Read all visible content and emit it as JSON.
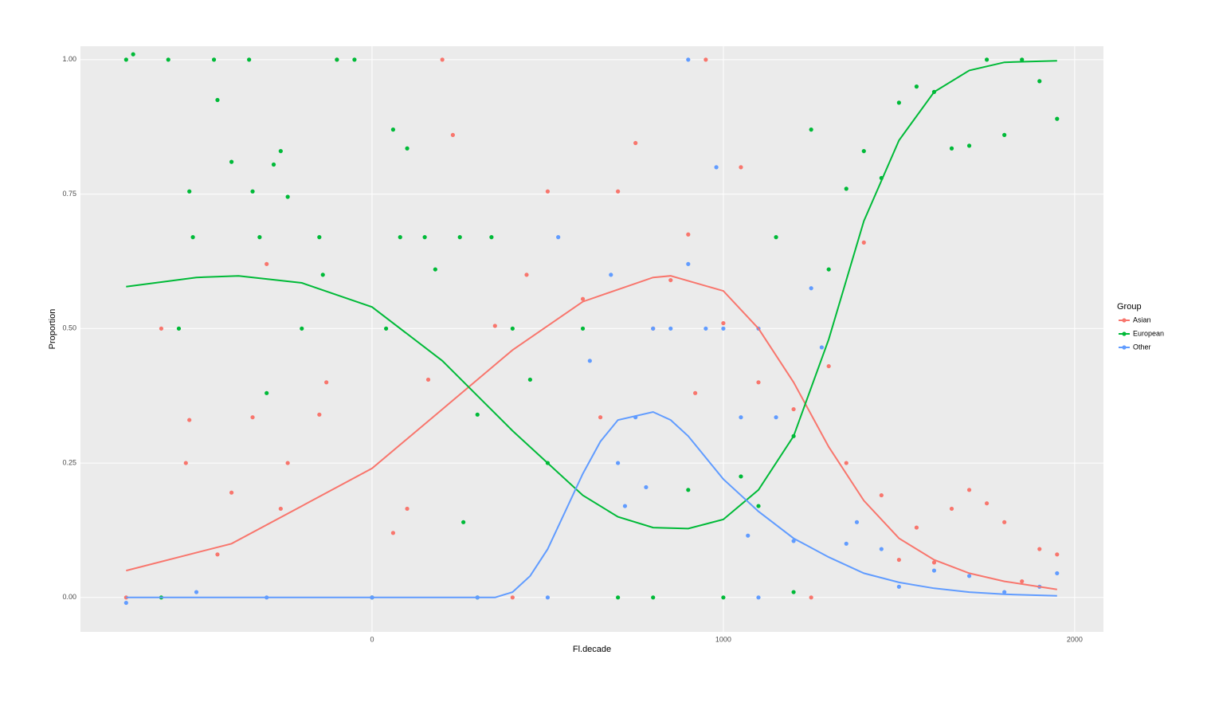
{
  "chart_data": {
    "type": "scatter",
    "x_label": "Fl.decade",
    "y_label": "Proportion",
    "xlim": [
      -830,
      2082
    ],
    "ylim": [
      -0.064,
      1.025
    ],
    "xticks": [
      0,
      1000,
      2000
    ],
    "yticks": [
      {
        "value": 0,
        "label": "0.00"
      },
      {
        "value": 0.25,
        "label": "0.25"
      },
      {
        "value": 0.5,
        "label": "0.50"
      },
      {
        "value": 0.75,
        "label": "0.75"
      },
      {
        "value": 1,
        "label": "1.00"
      }
    ],
    "grid": true,
    "legend_title": "Group",
    "legend_position": "right",
    "series": [
      {
        "name": "Asian",
        "color": "#F8766D",
        "x": [
          -600,
          -520,
          -530,
          -440,
          -400,
          -340,
          -300,
          -260,
          -240,
          -150,
          -130,
          -100,
          0,
          60,
          100,
          160,
          230,
          200,
          350,
          440,
          500,
          600,
          650,
          700,
          750,
          800,
          850,
          900,
          920,
          950,
          1000,
          1050,
          1100,
          1200,
          1300,
          1350,
          1400,
          1450,
          1500,
          1550,
          1600,
          1650,
          1700,
          1750,
          1800,
          1850,
          1900,
          1950,
          -700,
          400,
          1250
        ],
        "values": [
          0.5,
          0.33,
          0.25,
          0.08,
          0.195,
          0.335,
          0.62,
          0.165,
          0.25,
          0.34,
          0.4,
          1,
          0,
          0.12,
          0.165,
          0.405,
          0.86,
          1,
          0.505,
          0.6,
          0.755,
          0.555,
          0.335,
          0.755,
          0.845,
          0.5,
          0.59,
          0.675,
          0.38,
          1,
          0.51,
          0.8,
          0.4,
          0.35,
          0.43,
          0.25,
          0.66,
          0.19,
          0.07,
          0.13,
          0.065,
          0.165,
          0.2,
          0.175,
          0.14,
          0.03,
          0.09,
          0.08,
          0,
          0,
          0
        ],
        "smooth_x": [
          -700,
          -400,
          -200,
          0,
          200,
          400,
          600,
          800,
          850,
          1000,
          1100,
          1200,
          1300,
          1400,
          1500,
          1600,
          1700,
          1800,
          1950
        ],
        "smooth_values": [
          0.05,
          0.1,
          0.17,
          0.24,
          0.35,
          0.46,
          0.55,
          0.595,
          0.598,
          0.57,
          0.5,
          0.4,
          0.28,
          0.18,
          0.11,
          0.07,
          0.045,
          0.03,
          0.015
        ]
      },
      {
        "name": "European",
        "color": "#00BA38",
        "x": [
          -700,
          -680,
          -580,
          -550,
          -520,
          -510,
          -450,
          -440,
          -400,
          -350,
          -340,
          -320,
          -300,
          -280,
          -260,
          -240,
          -200,
          -150,
          -140,
          -100,
          -50,
          40,
          60,
          80,
          100,
          150,
          180,
          250,
          260,
          300,
          340,
          400,
          450,
          500,
          600,
          700,
          900,
          1050,
          1100,
          1150,
          1200,
          1250,
          1300,
          1350,
          1400,
          1450,
          1500,
          1550,
          1600,
          1650,
          1700,
          1750,
          1800,
          1850,
          1900,
          1950,
          1200,
          -600,
          0,
          300,
          800,
          1000
        ],
        "values": [
          1,
          1.01,
          1,
          0.5,
          0.755,
          0.67,
          1,
          0.925,
          0.81,
          1,
          0.755,
          0.67,
          0.38,
          0.805,
          0.83,
          0.745,
          0.5,
          0.67,
          0.6,
          1,
          1,
          0.5,
          0.87,
          0.67,
          0.835,
          0.67,
          0.61,
          0.67,
          0.14,
          0.34,
          0.67,
          0.5,
          0.405,
          0.25,
          0.5,
          0,
          0.2,
          0.225,
          0.17,
          0.67,
          0.3,
          0.87,
          0.61,
          0.76,
          0.83,
          0.78,
          0.92,
          0.95,
          0.94,
          0.835,
          0.84,
          1,
          0.86,
          1,
          0.96,
          0.89,
          0.01,
          0,
          0,
          0,
          0,
          0
        ],
        "smooth_x": [
          -700,
          -500,
          -380,
          -200,
          0,
          200,
          400,
          500,
          600,
          700,
          800,
          900,
          1000,
          1100,
          1200,
          1300,
          1400,
          1500,
          1600,
          1700,
          1800,
          1950
        ],
        "smooth_values": [
          0.578,
          0.595,
          0.598,
          0.585,
          0.54,
          0.44,
          0.31,
          0.25,
          0.19,
          0.15,
          0.13,
          0.128,
          0.145,
          0.2,
          0.3,
          0.48,
          0.7,
          0.85,
          0.94,
          0.98,
          0.995,
          0.998
        ]
      },
      {
        "name": "Other",
        "color": "#619CFF",
        "x": [
          -700,
          -500,
          -300,
          0,
          300,
          500,
          530,
          620,
          680,
          700,
          720,
          750,
          780,
          800,
          850,
          900,
          950,
          980,
          1000,
          1050,
          1070,
          1100,
          1150,
          1200,
          1250,
          1280,
          1350,
          1380,
          1450,
          1500,
          1600,
          1700,
          1800,
          1900,
          1950,
          900,
          1100
        ],
        "values": [
          -0.01,
          0.01,
          0,
          0,
          0,
          0,
          0.67,
          0.44,
          0.6,
          0.25,
          0.17,
          0.335,
          0.205,
          0.5,
          0.5,
          0.62,
          0.5,
          0.8,
          0.5,
          0.335,
          0.115,
          0.5,
          0.335,
          0.105,
          0.575,
          0.465,
          0.1,
          0.14,
          0.09,
          0.02,
          0.05,
          0.04,
          0.01,
          0.02,
          0.045,
          1,
          0
        ],
        "smooth_x": [
          -700,
          0,
          350,
          400,
          450,
          500,
          550,
          600,
          650,
          700,
          800,
          850,
          900,
          1000,
          1100,
          1200,
          1300,
          1400,
          1500,
          1600,
          1700,
          1800,
          1950
        ],
        "smooth_values": [
          0,
          0,
          0,
          0.01,
          0.04,
          0.09,
          0.16,
          0.23,
          0.29,
          0.33,
          0.345,
          0.33,
          0.3,
          0.22,
          0.16,
          0.11,
          0.075,
          0.045,
          0.028,
          0.017,
          0.01,
          0.006,
          0.003
        ]
      }
    ]
  }
}
